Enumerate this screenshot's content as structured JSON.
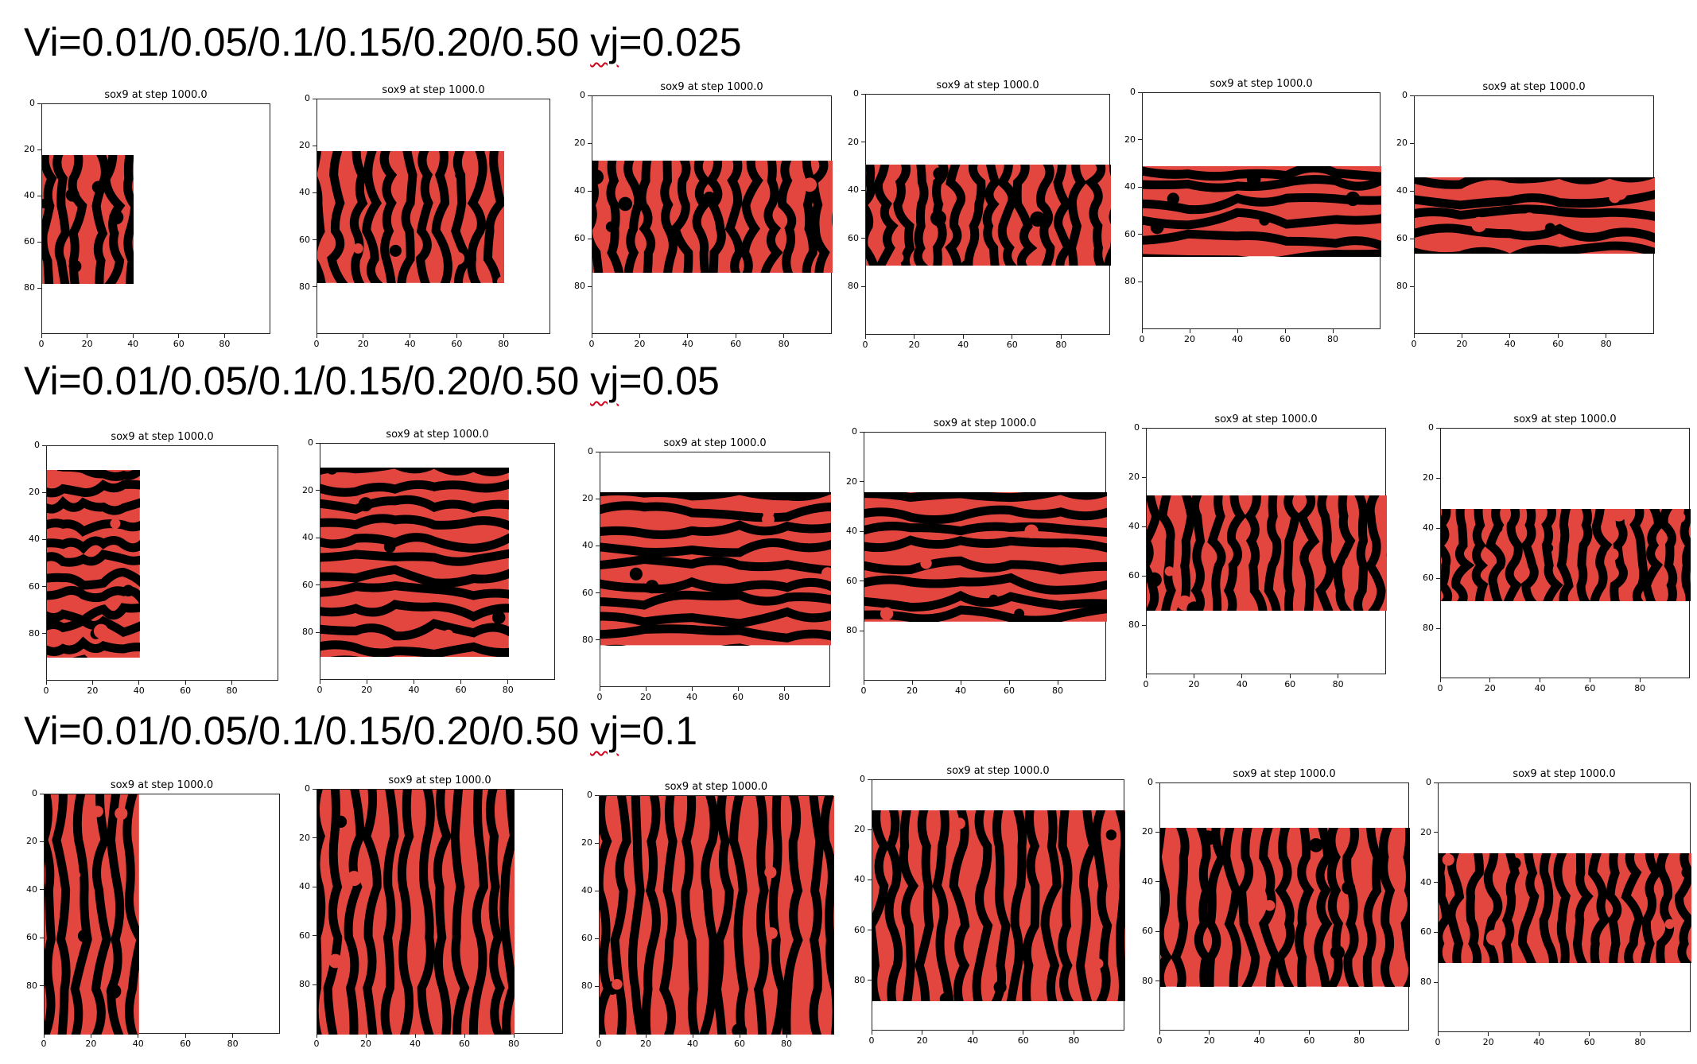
{
  "rows": [
    {
      "prefix": "Vi=0.01/0.05/0.1/0.15/0.20/0.50 ",
      "vj_word": "vj",
      "suffix": "=0.025"
    },
    {
      "prefix": "Vi=0.01/0.05/0.1/0.15/0.20/0.50 ",
      "vj_word": "vj",
      "suffix": "=0.05"
    },
    {
      "prefix": "Vi=0.01/0.05/0.1/0.15/0.20/0.50 ",
      "vj_word": "vj",
      "suffix": "=0.1"
    }
  ],
  "panel_title": "sox9 at step 1000.0",
  "colors": {
    "red": "#e2463e",
    "black": "#000000",
    "spellcheck": "#d0021b"
  },
  "chart_data": [
    {
      "type": "heatmap",
      "title": "sox9 at step 1000.0",
      "xticks": [
        "0",
        "20",
        "40",
        "60",
        "80"
      ],
      "yticks": [
        "0",
        "20",
        "40",
        "60",
        "80"
      ],
      "xlim": [
        0,
        100
      ],
      "ylim": [
        100,
        0
      ],
      "pattern_x": [
        0,
        40
      ],
      "pattern_y": [
        22,
        78
      ]
    },
    {
      "type": "heatmap",
      "title": "sox9 at step 1000.0",
      "xticks": [
        "0",
        "20",
        "40",
        "60",
        "80"
      ],
      "yticks": [
        "0",
        "20",
        "40",
        "60",
        "80"
      ],
      "xlim": [
        0,
        100
      ],
      "ylim": [
        100,
        0
      ],
      "pattern_x": [
        0,
        80
      ],
      "pattern_y": [
        22,
        78
      ]
    },
    {
      "type": "heatmap",
      "title": "sox9 at step 1000.0",
      "xticks": [
        "0",
        "20",
        "40",
        "60",
        "80"
      ],
      "yticks": [
        "0",
        "20",
        "40",
        "60",
        "80"
      ],
      "xlim": [
        0,
        100
      ],
      "ylim": [
        100,
        0
      ],
      "pattern_x": [
        0,
        100
      ],
      "pattern_y": [
        27,
        74
      ]
    },
    {
      "type": "heatmap",
      "title": "sox9 at step 1000.0",
      "xticks": [
        "0",
        "20",
        "40",
        "60",
        "80"
      ],
      "yticks": [
        "0",
        "20",
        "40",
        "60",
        "80"
      ],
      "xlim": [
        0,
        100
      ],
      "ylim": [
        100,
        0
      ],
      "pattern_x": [
        0,
        100
      ],
      "pattern_y": [
        29,
        71
      ]
    },
    {
      "type": "heatmap",
      "title": "sox9 at step 1000.0",
      "xticks": [
        "0",
        "20",
        "40",
        "60",
        "80"
      ],
      "yticks": [
        "0",
        "20",
        "40",
        "60",
        "80"
      ],
      "xlim": [
        0,
        100
      ],
      "ylim": [
        100,
        0
      ],
      "pattern_x": [
        0,
        100
      ],
      "pattern_y": [
        31,
        69
      ]
    },
    {
      "type": "heatmap",
      "title": "sox9 at step 1000.0",
      "xticks": [
        "0",
        "20",
        "40",
        "60",
        "80"
      ],
      "yticks": [
        "0",
        "20",
        "40",
        "60",
        "80"
      ],
      "xlim": [
        0,
        100
      ],
      "ylim": [
        100,
        0
      ],
      "pattern_x": [
        0,
        100
      ],
      "pattern_y": [
        34,
        66
      ]
    },
    {
      "type": "heatmap",
      "title": "sox9 at step 1000.0",
      "xticks": [
        "0",
        "20",
        "40",
        "60",
        "80"
      ],
      "yticks": [
        "0",
        "20",
        "40",
        "60",
        "80"
      ],
      "xlim": [
        0,
        100
      ],
      "ylim": [
        100,
        0
      ],
      "pattern_x": [
        0,
        40
      ],
      "pattern_y": [
        10,
        90
      ]
    },
    {
      "type": "heatmap",
      "title": "sox9 at step 1000.0",
      "xticks": [
        "0",
        "20",
        "40",
        "60",
        "80"
      ],
      "yticks": [
        "0",
        "20",
        "40",
        "60",
        "80"
      ],
      "xlim": [
        0,
        100
      ],
      "ylim": [
        100,
        0
      ],
      "pattern_x": [
        0,
        80
      ],
      "pattern_y": [
        10,
        90
      ]
    },
    {
      "type": "heatmap",
      "title": "sox9 at step 1000.0",
      "xticks": [
        "0",
        "20",
        "40",
        "60",
        "80"
      ],
      "yticks": [
        "0",
        "20",
        "40",
        "60",
        "80"
      ],
      "xlim": [
        0,
        100
      ],
      "ylim": [
        100,
        0
      ],
      "pattern_x": [
        0,
        100
      ],
      "pattern_y": [
        17,
        82
      ]
    },
    {
      "type": "heatmap",
      "title": "sox9 at step 1000.0",
      "xticks": [
        "0",
        "20",
        "40",
        "60",
        "80"
      ],
      "yticks": [
        "0",
        "20",
        "40",
        "60",
        "80"
      ],
      "xlim": [
        0,
        100
      ],
      "ylim": [
        100,
        0
      ],
      "pattern_x": [
        0,
        100
      ],
      "pattern_y": [
        24,
        76
      ]
    },
    {
      "type": "heatmap",
      "title": "sox9 at step 1000.0",
      "xticks": [
        "0",
        "20",
        "40",
        "60",
        "80"
      ],
      "yticks": [
        "0",
        "20",
        "40",
        "60",
        "80"
      ],
      "xlim": [
        0,
        100
      ],
      "ylim": [
        100,
        0
      ],
      "pattern_x": [
        0,
        100
      ],
      "pattern_y": [
        27,
        74
      ]
    },
    {
      "type": "heatmap",
      "title": "sox9 at step 1000.0",
      "xticks": [
        "0",
        "20",
        "40",
        "60",
        "80"
      ],
      "yticks": [
        "0",
        "20",
        "40",
        "60",
        "80"
      ],
      "xlim": [
        0,
        100
      ],
      "ylim": [
        100,
        0
      ],
      "pattern_x": [
        0,
        100
      ],
      "pattern_y": [
        32,
        69
      ]
    },
    {
      "type": "heatmap",
      "title": "sox9 at step 1000.0",
      "xticks": [
        "0",
        "20",
        "40",
        "60",
        "80"
      ],
      "yticks": [
        "0",
        "20",
        "40",
        "60",
        "80"
      ],
      "xlim": [
        0,
        100
      ],
      "ylim": [
        100,
        0
      ],
      "pattern_x": [
        0,
        40
      ],
      "pattern_y": [
        0,
        100
      ]
    },
    {
      "type": "heatmap",
      "title": "sox9 at step 1000.0",
      "xticks": [
        "0",
        "20",
        "40",
        "60",
        "80"
      ],
      "yticks": [
        "0",
        "20",
        "40",
        "60",
        "80"
      ],
      "xlim": [
        0,
        100
      ],
      "ylim": [
        100,
        0
      ],
      "pattern_x": [
        0,
        80
      ],
      "pattern_y": [
        0,
        100
      ]
    },
    {
      "type": "heatmap",
      "title": "sox9 at step 1000.0",
      "xticks": [
        "0",
        "20",
        "40",
        "60",
        "80"
      ],
      "yticks": [
        "0",
        "20",
        "40",
        "60",
        "80"
      ],
      "xlim": [
        0,
        100
      ],
      "ylim": [
        100,
        0
      ],
      "pattern_x": [
        0,
        100
      ],
      "pattern_y": [
        0,
        100
      ]
    },
    {
      "type": "heatmap",
      "title": "sox9 at step 1000.0",
      "xticks": [
        "0",
        "20",
        "40",
        "60",
        "80"
      ],
      "yticks": [
        "0",
        "20",
        "40",
        "60",
        "80"
      ],
      "xlim": [
        0,
        100
      ],
      "ylim": [
        100,
        0
      ],
      "pattern_x": [
        0,
        100
      ],
      "pattern_y": [
        12,
        88
      ]
    },
    {
      "type": "heatmap",
      "title": "sox9 at step 1000.0",
      "xticks": [
        "0",
        "20",
        "40",
        "60",
        "80"
      ],
      "yticks": [
        "0",
        "20",
        "40",
        "60",
        "80"
      ],
      "xlim": [
        0,
        100
      ],
      "ylim": [
        100,
        0
      ],
      "pattern_x": [
        0,
        100
      ],
      "pattern_y": [
        18,
        82
      ]
    },
    {
      "type": "heatmap",
      "title": "sox9 at step 1000.0",
      "xticks": [
        "0",
        "20",
        "40",
        "60",
        "80"
      ],
      "yticks": [
        "0",
        "20",
        "40",
        "60",
        "80"
      ],
      "xlim": [
        0,
        100
      ],
      "ylim": [
        100,
        0
      ],
      "pattern_x": [
        0,
        100
      ],
      "pattern_y": [
        28,
        72
      ]
    }
  ]
}
